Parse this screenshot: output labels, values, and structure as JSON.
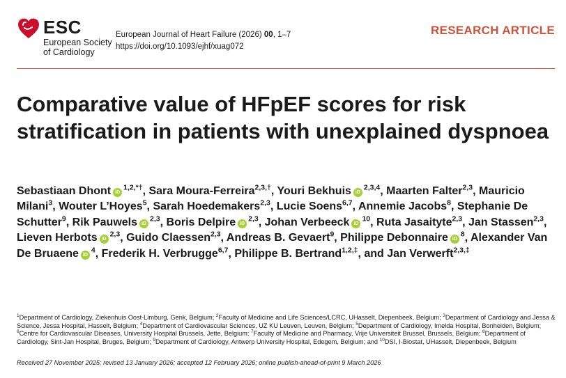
{
  "logo": {
    "name": "ESC",
    "subtitle_line1": "European Society",
    "subtitle_line2": "of Cardiology",
    "heart_color": "#c8102e"
  },
  "journal": {
    "name": "European Journal of Heart Failure (2026)",
    "volume": "00",
    "pages": ", 1–7",
    "doi": "https://doi.org/10.1093/ejhf/xuag072"
  },
  "article_type": "RESEARCH ARTICLE",
  "accent_color": "#c8553d",
  "title": "Comparative value of HFpEF scores for risk stratification in patients with unexplained dyspnoea",
  "authors": [
    {
      "name": "Sebastiaan Dhont",
      "orcid": true,
      "sup": "1,2,*†"
    },
    {
      "name": "Sara Moura-Ferreira",
      "orcid": false,
      "sup": "2,3,†"
    },
    {
      "name": "Youri Bekhuis",
      "orcid": true,
      "sup": "2,3,4"
    },
    {
      "name": "Maarten Falter",
      "orcid": false,
      "sup": "2,3"
    },
    {
      "name": "Mauricio Milani",
      "orcid": false,
      "sup": "3"
    },
    {
      "name": "Wouter L’Hoyes",
      "orcid": false,
      "sup": "5"
    },
    {
      "name": "Sarah Hoedemakers",
      "orcid": false,
      "sup": "2,3"
    },
    {
      "name": "Lucie Soens",
      "orcid": false,
      "sup": "6,7"
    },
    {
      "name": "Annemie Jacobs",
      "orcid": false,
      "sup": "8"
    },
    {
      "name": "Stephanie De Schutter",
      "orcid": false,
      "sup": "9"
    },
    {
      "name": "Rik Pauwels",
      "orcid": true,
      "sup": "2,3"
    },
    {
      "name": "Boris Delpire",
      "orcid": true,
      "sup": "2,3"
    },
    {
      "name": "Johan Verbeeck",
      "orcid": true,
      "sup": "10"
    },
    {
      "name": "Ruta Jasaityte",
      "orcid": false,
      "sup": "2,3"
    },
    {
      "name": "Jan Stassen",
      "orcid": false,
      "sup": "2,3"
    },
    {
      "name": "Lieven Herbots",
      "orcid": true,
      "sup": "2,3"
    },
    {
      "name": "Guido Claessen",
      "orcid": false,
      "sup": "2,3"
    },
    {
      "name": "Andreas B. Gevaert",
      "orcid": false,
      "sup": "9"
    },
    {
      "name": "Philippe Debonnaire",
      "orcid": true,
      "sup": "8"
    },
    {
      "name": "Alexander Van De Bruaene",
      "orcid": true,
      "sup": "4"
    },
    {
      "name": "Frederik H. Verbrugge",
      "orcid": false,
      "sup": "6,7"
    },
    {
      "name": "Philippe B. Bertrand",
      "orcid": false,
      "sup": "1,2,‡"
    },
    {
      "name": "Jan Verwerft",
      "orcid": false,
      "sup": "2,3,‡"
    }
  ],
  "orcid_label": "iD",
  "author_separator": ", ",
  "author_last_separator": ", and ",
  "affiliations": [
    {
      "n": "1",
      "text": "Department of Cardiology, Ziekenhuis Oost-Limburg, Genk, Belgium; "
    },
    {
      "n": "2",
      "text": "Faculty of Medicine and Life Sciences/LCRC, UHasselt, Diepenbeek, Belgium; "
    },
    {
      "n": "3",
      "text": "Department of Cardiology and Jessa & Science, Jessa Hospital, Hasselt, Belgium; "
    },
    {
      "n": "4",
      "text": "Department of Cardiovascular Sciences, UZ KU Leuven, Leuven, Belgium; "
    },
    {
      "n": "5",
      "text": "Department of Cardiology, Imelda Hospital, Bonheiden, Belgium; "
    },
    {
      "n": "6",
      "text": "Centre for Cardiovascular Diseases, University Hospital Brussels, Jette, Belgium; "
    },
    {
      "n": "7",
      "text": "Faculty of Medicine and Pharmacy, Vrije Universiteit Brussel, Brussels, Belgium; "
    },
    {
      "n": "8",
      "text": "Department of Cardiology, Sint-Jan Hospital, Bruges, Belgium; "
    },
    {
      "n": "9",
      "text": "Department of Cardiology, Antwerp University Hospital, Edegem, Belgium; and "
    },
    {
      "n": "10",
      "text": "DSI, I-Biostat, UHasselt, Diepenbeek, Belgium"
    }
  ],
  "dates": "Received 27 November 2025; revised 13 January 2026; accepted 12 February 2026; online publish-ahead-of-print 9 March 2026"
}
